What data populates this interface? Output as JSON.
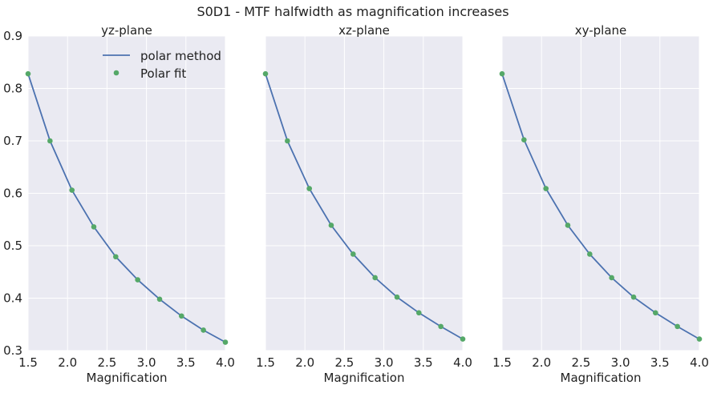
{
  "figure": {
    "suptitle": "S0D1 - MTF halfwidth as magnification increases"
  },
  "colors": {
    "panel_bg": "#eaeaf2",
    "grid": "#ffffff",
    "line": "#4c72b0",
    "marker": "#55a868"
  },
  "chart_data": [
    {
      "type": "line",
      "title": "yz-plane",
      "xlabel": "Magnification",
      "ylabel": "",
      "xlim": [
        1.5,
        4.0
      ],
      "ylim": [
        0.3,
        0.9
      ],
      "xticks": [
        "1.5",
        "2.0",
        "2.5",
        "3.0",
        "3.5",
        "4.0"
      ],
      "yticks": [
        "0.3",
        "0.4",
        "0.5",
        "0.6",
        "0.7",
        "0.8",
        "0.9"
      ],
      "grid": true,
      "legend": {
        "position": "upper-right",
        "entries": [
          "polar method",
          "Polar fit"
        ]
      },
      "series": [
        {
          "name": "polar method",
          "style": "line",
          "x": [
            1.5,
            1.778,
            2.056,
            2.333,
            2.611,
            2.889,
            3.167,
            3.444,
            3.722,
            4.0
          ],
          "y": [
            0.828,
            0.7,
            0.606,
            0.536,
            0.479,
            0.435,
            0.398,
            0.366,
            0.339,
            0.316
          ]
        },
        {
          "name": "Polar fit",
          "style": "markers",
          "x": [
            1.5,
            1.778,
            2.056,
            2.333,
            2.611,
            2.889,
            3.167,
            3.444,
            3.722,
            4.0
          ],
          "y": [
            0.828,
            0.7,
            0.606,
            0.536,
            0.479,
            0.435,
            0.398,
            0.366,
            0.339,
            0.316
          ]
        }
      ]
    },
    {
      "type": "line",
      "title": "xz-plane",
      "xlabel": "Magnification",
      "ylabel": "",
      "xlim": [
        1.5,
        4.0
      ],
      "ylim": [
        0.3,
        0.9
      ],
      "xticks": [
        "1.5",
        "2.0",
        "2.5",
        "3.0",
        "3.5",
        "4.0"
      ],
      "yticks": [],
      "grid": true,
      "series": [
        {
          "name": "polar method",
          "style": "line",
          "x": [
            1.5,
            1.778,
            2.056,
            2.333,
            2.611,
            2.889,
            3.167,
            3.444,
            3.722,
            4.0
          ],
          "y": [
            0.828,
            0.7,
            0.609,
            0.539,
            0.484,
            0.439,
            0.402,
            0.372,
            0.346,
            0.322
          ]
        },
        {
          "name": "Polar fit",
          "style": "markers",
          "x": [
            1.5,
            1.778,
            2.056,
            2.333,
            2.611,
            2.889,
            3.167,
            3.444,
            3.722,
            4.0
          ],
          "y": [
            0.828,
            0.7,
            0.609,
            0.539,
            0.484,
            0.439,
            0.402,
            0.372,
            0.346,
            0.322
          ]
        }
      ]
    },
    {
      "type": "line",
      "title": "xy-plane",
      "xlabel": "Magnification",
      "ylabel": "",
      "xlim": [
        1.5,
        4.0
      ],
      "ylim": [
        0.3,
        0.9
      ],
      "xticks": [
        "1.5",
        "2.0",
        "2.5",
        "3.0",
        "3.5",
        "4.0"
      ],
      "yticks": [],
      "grid": true,
      "series": [
        {
          "name": "polar method",
          "style": "line",
          "x": [
            1.5,
            1.778,
            2.056,
            2.333,
            2.611,
            2.889,
            3.167,
            3.444,
            3.722,
            4.0
          ],
          "y": [
            0.828,
            0.702,
            0.609,
            0.539,
            0.484,
            0.439,
            0.402,
            0.372,
            0.346,
            0.322
          ]
        },
        {
          "name": "Polar fit",
          "style": "markers",
          "x": [
            1.5,
            1.778,
            2.056,
            2.333,
            2.611,
            2.889,
            3.167,
            3.444,
            3.722,
            4.0
          ],
          "y": [
            0.828,
            0.702,
            0.609,
            0.539,
            0.484,
            0.439,
            0.402,
            0.372,
            0.346,
            0.322
          ]
        }
      ]
    }
  ]
}
